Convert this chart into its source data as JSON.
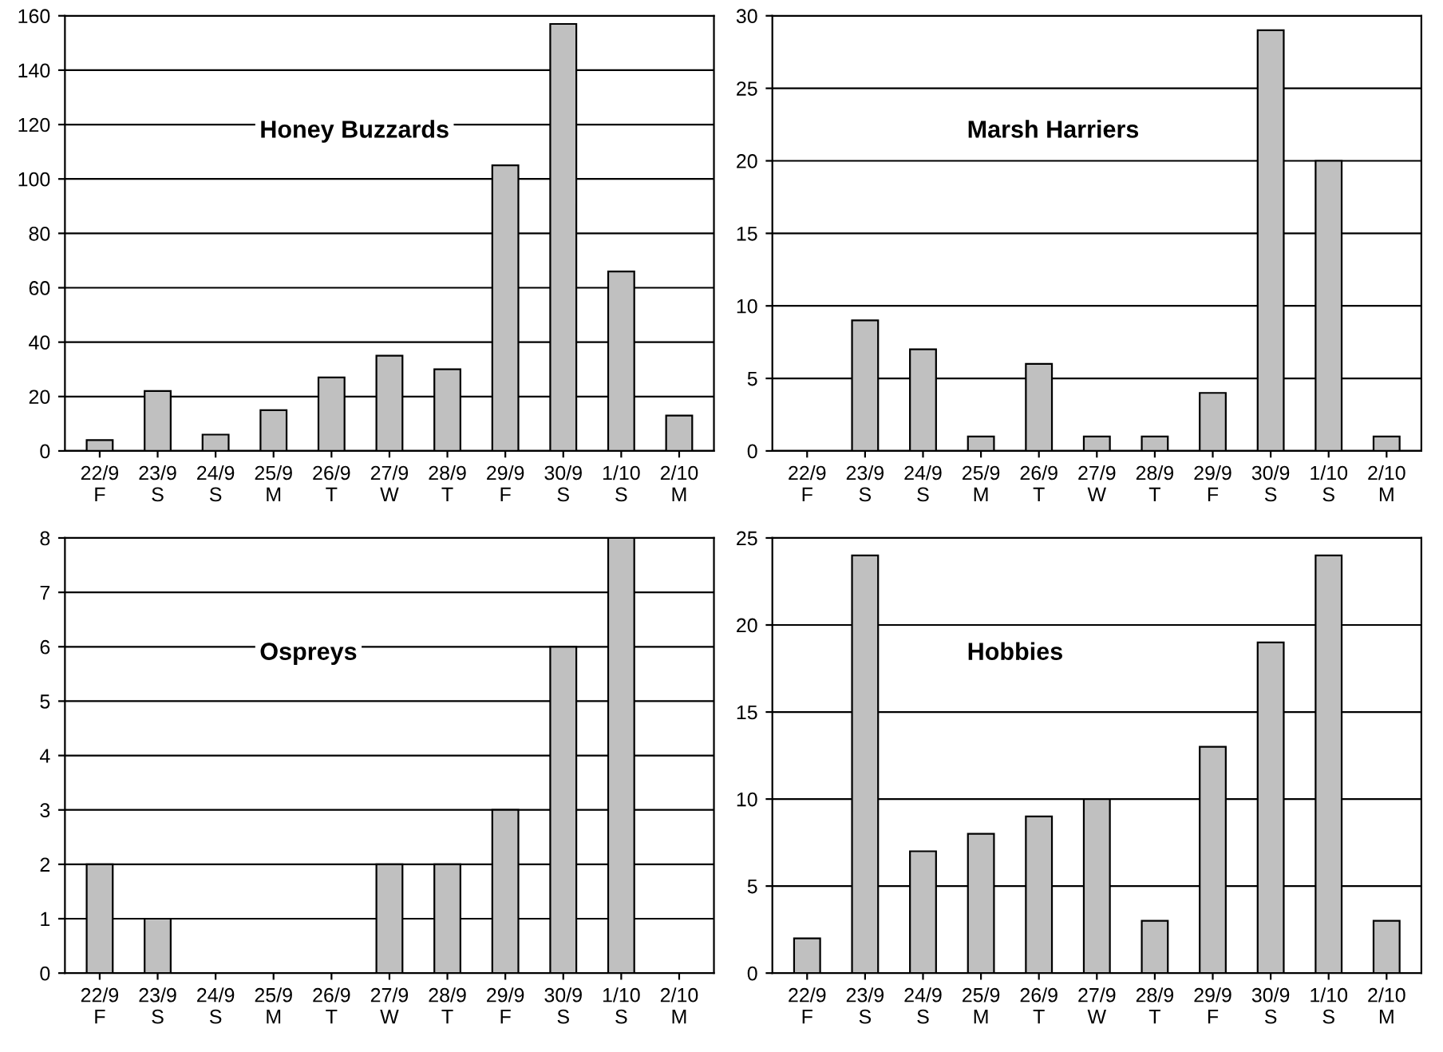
{
  "chart_data": [
    {
      "type": "bar",
      "title": "Honey Buzzards",
      "categories": [
        "22/9\nF",
        "23/9\nS",
        "24/9\nS",
        "25/9\nM",
        "26/9\nT",
        "27/9\nW",
        "28/9\nT",
        "29/9\nF",
        "30/9\nS",
        "1/10\nS",
        "2/10\nM"
      ],
      "values": [
        4,
        22,
        6,
        15,
        27,
        35,
        30,
        105,
        157,
        66,
        13
      ],
      "color": "#c0c0c0",
      "ylim": [
        0,
        160
      ],
      "yticks": [
        0,
        20,
        40,
        60,
        80,
        100,
        120,
        140,
        160
      ],
      "grid": "y"
    },
    {
      "type": "bar",
      "title": "Marsh Harriers",
      "categories": [
        "22/9\nF",
        "23/9\nS",
        "24/9\nS",
        "25/9\nM",
        "26/9\nT",
        "27/9\nW",
        "28/9\nT",
        "29/9\nF",
        "30/9\nS",
        "1/10\nS",
        "2/10\nM"
      ],
      "values": [
        0,
        9,
        7,
        1,
        6,
        1,
        1,
        4,
        29,
        20,
        1
      ],
      "color": "#c0c0c0",
      "ylim": [
        0,
        30
      ],
      "yticks": [
        0,
        5,
        10,
        15,
        20,
        25,
        30
      ],
      "grid": "y"
    },
    {
      "type": "bar",
      "title": "Ospreys",
      "categories": [
        "22/9\nF",
        "23/9\nS",
        "24/9\nS",
        "25/9\nM",
        "26/9\nT",
        "27/9\nW",
        "28/9\nT",
        "29/9\nF",
        "30/9\nS",
        "1/10\nS",
        "2/10\nM"
      ],
      "values": [
        2,
        1,
        0,
        0,
        0,
        2,
        2,
        3,
        6,
        8,
        0
      ],
      "color": "#c0c0c0",
      "ylim": [
        0,
        8
      ],
      "yticks": [
        0,
        1,
        2,
        3,
        4,
        5,
        6,
        7,
        8
      ],
      "grid": "y"
    },
    {
      "type": "bar",
      "title": "Hobbies",
      "categories": [
        "22/9\nF",
        "23/9\nS",
        "24/9\nS",
        "25/9\nM",
        "26/9\nT",
        "27/9\nW",
        "28/9\nT",
        "29/9\nF",
        "30/9\nS",
        "1/10\nS",
        "2/10\nM"
      ],
      "values": [
        2,
        24,
        7,
        8,
        9,
        10,
        3,
        13,
        19,
        24,
        3
      ],
      "color": "#c0c0c0",
      "ylim": [
        0,
        25
      ],
      "yticks": [
        0,
        5,
        10,
        15,
        20,
        25
      ],
      "grid": "y"
    }
  ]
}
